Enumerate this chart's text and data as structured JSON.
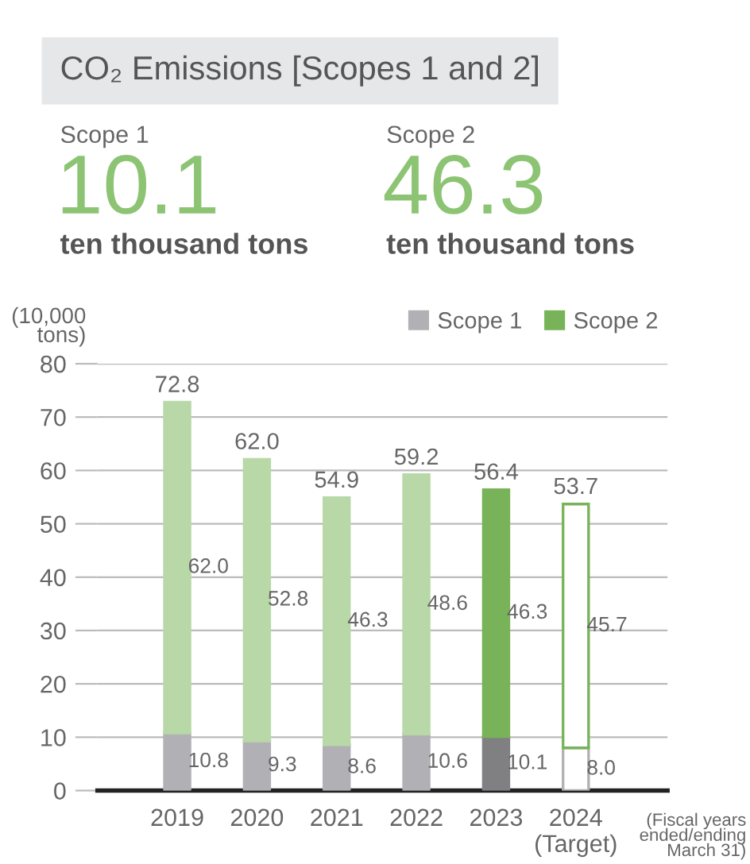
{
  "chart_data": {
    "type": "bar",
    "title": "CO₂ Emissions [Scopes 1 and 2]",
    "ylabel": "(10,000\ntons)",
    "categories": [
      "2019",
      "2020",
      "2021",
      "2022",
      "2023",
      "2024\n(Target)"
    ],
    "series": [
      {
        "name": "Scope 1",
        "color": "#b1b1b5",
        "colors": [
          "#b1b1b5",
          "#b1b1b5",
          "#b1b1b5",
          "#b1b1b5",
          "#808083",
          "#ffffff"
        ],
        "values": [
          10.8,
          9.3,
          8.6,
          10.6,
          10.1,
          8.0
        ],
        "value_labels": [
          "10.8",
          "9.3",
          "8.6",
          "10.6",
          "10.1",
          "8.0"
        ]
      },
      {
        "name": "Scope 2",
        "color": "#78b359",
        "colors": [
          "#b8d8a7",
          "#b8d8a7",
          "#b8d8a7",
          "#b8d8a7",
          "#78b359",
          "#ffffff"
        ],
        "values": [
          62.0,
          52.8,
          46.3,
          48.6,
          46.3,
          45.7
        ],
        "value_labels": [
          "62.0",
          "52.8",
          "46.3",
          "48.6",
          "46.3",
          "45.7"
        ]
      }
    ],
    "stacked": true,
    "totals": [
      "72.8",
      "62.0",
      "54.9",
      "59.2",
      "56.4",
      "53.7"
    ],
    "ylim": [
      0,
      80
    ],
    "yticks": [
      0,
      10,
      20,
      30,
      40,
      50,
      60,
      70,
      80
    ],
    "grid": "y",
    "legend": "top right",
    "annotations": [
      "Scope 1",
      "10.1",
      "ten thousand tons",
      "Scope 2",
      "46.3",
      "ten thousand tons",
      "(Fiscal years ended/ending March 31)"
    ]
  }
}
